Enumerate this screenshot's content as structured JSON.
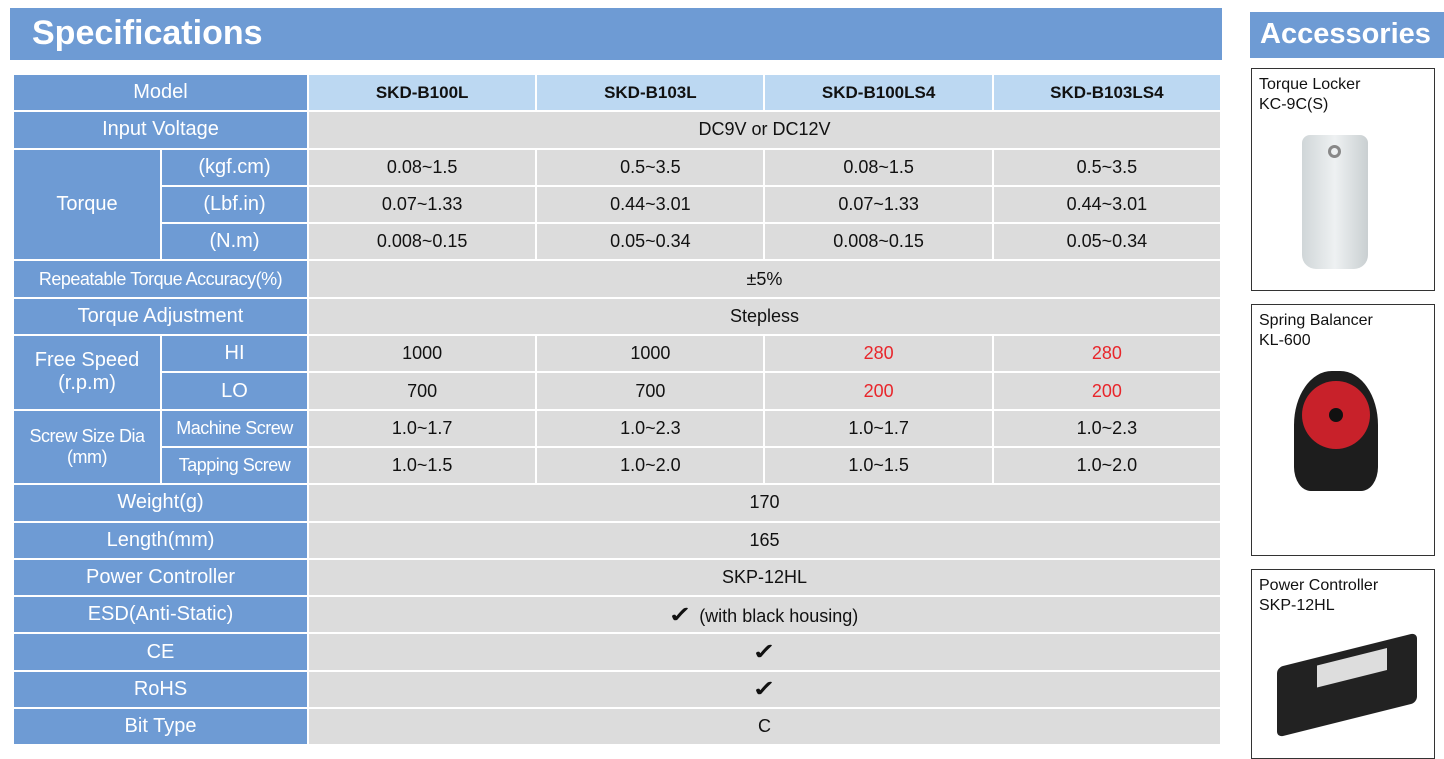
{
  "title": "Specifications",
  "accessories_title": "Accessories",
  "table": {
    "model_label": "Model",
    "models": [
      "SKD-B100L",
      "SKD-B103L",
      "SKD-B100LS4",
      "SKD-B103LS4"
    ],
    "input_voltage": {
      "label": "Input Voltage",
      "value": "DC9V or DC12V"
    },
    "torque": {
      "label": "Torque",
      "rows": [
        {
          "unit": "(kgf.cm)",
          "values": [
            "0.08~1.5",
            "0.5~3.5",
            "0.08~1.5",
            "0.5~3.5"
          ]
        },
        {
          "unit": "(Lbf.in)",
          "values": [
            "0.07~1.33",
            "0.44~3.01",
            "0.07~1.33",
            "0.44~3.01"
          ]
        },
        {
          "unit": "(N.m)",
          "values": [
            "0.008~0.15",
            "0.05~0.34",
            "0.008~0.15",
            "0.05~0.34"
          ]
        }
      ]
    },
    "accuracy": {
      "label": "Repeatable Torque Accuracy(%)",
      "value": "±5%"
    },
    "adjustment": {
      "label": "Torque Adjustment",
      "value": "Stepless"
    },
    "free_speed": {
      "label": "Free Speed",
      "unit": "(r.p.m)",
      "rows": [
        {
          "sub": "HI",
          "values": [
            "1000",
            "1000",
            "280",
            "280"
          ]
        },
        {
          "sub": "LO",
          "values": [
            "700",
            "700",
            "200",
            "200"
          ]
        }
      ]
    },
    "screw": {
      "label": "Screw Size Dia",
      "unit": "(mm)",
      "rows": [
        {
          "sub": "Machine Screw",
          "values": [
            "1.0~1.7",
            "1.0~2.3",
            "1.0~1.7",
            "1.0~2.3"
          ]
        },
        {
          "sub": "Tapping Screw",
          "values": [
            "1.0~1.5",
            "1.0~2.0",
            "1.0~1.5",
            "1.0~2.0"
          ]
        }
      ]
    },
    "weight": {
      "label": "Weight(g)",
      "value": "170"
    },
    "length": {
      "label": "Length(mm)",
      "value": "165"
    },
    "power": {
      "label": "Power Controller",
      "value": "SKP-12HL"
    },
    "esd": {
      "label": "ESD(Anti-Static)",
      "check": "✓",
      "value": "(with black housing)"
    },
    "ce": {
      "label": "CE",
      "check": "✓"
    },
    "rohs": {
      "label": "RoHS",
      "check": "✓"
    },
    "bit": {
      "label": "Bit Type",
      "value": "C"
    }
  },
  "accessories": [
    {
      "name": "Torque Locker",
      "model": "KC-9C(S)"
    },
    {
      "name": "Spring Balancer",
      "model": "KL-600"
    },
    {
      "name": "Power Controller",
      "model": "SKP-12HL"
    }
  ],
  "colors": {
    "header_blue": "#6e9bd4",
    "model_row": "#bcd8f2",
    "cell_gray": "#dcdcdc",
    "highlight_red": "#e8262b"
  }
}
